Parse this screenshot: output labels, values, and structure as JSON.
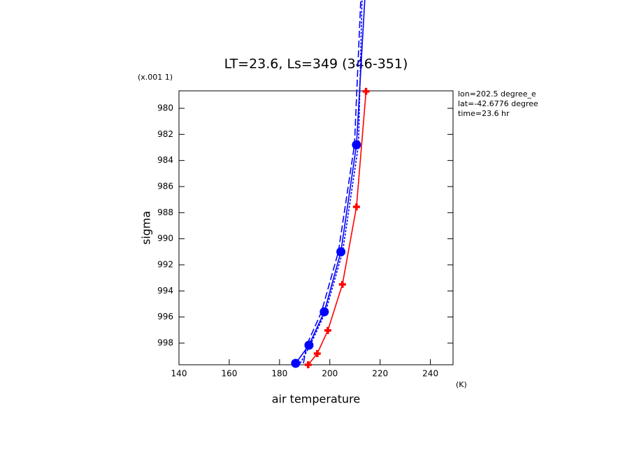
{
  "chart_data": {
    "type": "line",
    "title": "LT=23.6, Ls=349 (346-351)",
    "y_unit": "(x.001 1)",
    "x_unit": "(K)",
    "xlabel": "air temperature",
    "ylabel": "sigma",
    "annotations": [
      "lon=202.5 degree_e",
      "lat=-42.6776 degree",
      "time=23.6 hr"
    ],
    "xlim": [
      140,
      249
    ],
    "xticks": [
      140,
      160,
      180,
      200,
      220,
      240
    ],
    "ylim": [
      999.66,
      978.66
    ],
    "yticks": [
      980,
      982,
      984,
      986,
      988,
      990,
      992,
      994,
      996,
      998
    ],
    "series": [
      {
        "color": "#ff0000",
        "dash": "none",
        "marker": "plus",
        "x": [
          191.4,
          195,
          199.2,
          205,
          210.6,
          214.4
        ],
        "values": [
          999.66,
          998.8,
          997.03,
          993.5,
          987.55,
          978.7
        ]
      },
      {
        "color": "#0000ff",
        "dash": "none",
        "marker": "circle",
        "x": [
          186.4,
          191.7,
          197.8,
          204.4,
          210.6,
          213.9
        ],
        "values": [
          999.55,
          998.16,
          995.6,
          991,
          982.8,
          971.7
        ]
      },
      {
        "color": "#0000ff",
        "dash": "3,2",
        "marker": "none",
        "x": [
          188.2,
          192.2,
          198.3,
          205.1,
          211.4,
          212.8
        ],
        "values": [
          999.55,
          998.16,
          995.6,
          991,
          982.8,
          971.7
        ]
      },
      {
        "color": "#0000ff",
        "dash": "10,4",
        "marker": "none",
        "x": [
          189.5,
          190.8,
          196.7,
          203.4,
          209.8,
          212.3
        ],
        "values": [
          999.55,
          998.16,
          995.6,
          991,
          982.8,
          971.7
        ]
      }
    ]
  }
}
